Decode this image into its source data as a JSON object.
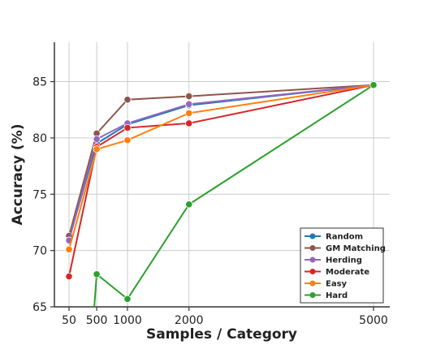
{
  "chart_data": {
    "type": "line",
    "title": "",
    "xlabel": "Samples / Category",
    "ylabel": "Accuracy (%)",
    "x": [
      50,
      500,
      1000,
      2000,
      5000
    ],
    "x_ticks": [
      50,
      500,
      1000,
      2000,
      5000
    ],
    "y_ticks": [
      65,
      70,
      75,
      80,
      85
    ],
    "ylim": [
      65,
      88.5
    ],
    "grid": true,
    "legend_position": "bottom-right",
    "series": [
      {
        "name": "Random",
        "color": "#1f77b4",
        "x": [
          50,
          500,
          1000,
          2000,
          5000
        ],
        "values": [
          71.0,
          79.5,
          81.2,
          82.9,
          84.7
        ]
      },
      {
        "name": "GM Matching",
        "color": "#8c564b",
        "x": [
          50,
          500,
          1000,
          2000,
          5000
        ],
        "values": [
          71.3,
          80.4,
          83.4,
          83.7,
          84.7
        ]
      },
      {
        "name": "Herding",
        "color": "#9467bd",
        "x": [
          50,
          500,
          1000,
          2000,
          5000
        ],
        "values": [
          70.9,
          79.9,
          81.3,
          83.0,
          84.7
        ]
      },
      {
        "name": "Moderate",
        "color": "#d62728",
        "x": [
          50,
          500,
          1000,
          2000,
          5000
        ],
        "values": [
          67.7,
          79.2,
          80.9,
          81.3,
          84.7
        ]
      },
      {
        "name": "Easy",
        "color": "#ff7f0e",
        "x": [
          50,
          500,
          1000,
          2000,
          5000
        ],
        "values": [
          70.1,
          79.0,
          79.8,
          82.2,
          84.7
        ]
      },
      {
        "name": "Hard",
        "color": "#2ca02c",
        "x": [
          460,
          500,
          1000,
          2000,
          5000
        ],
        "values": [
          65.0,
          67.9,
          65.7,
          74.1,
          84.7
        ]
      }
    ]
  }
}
